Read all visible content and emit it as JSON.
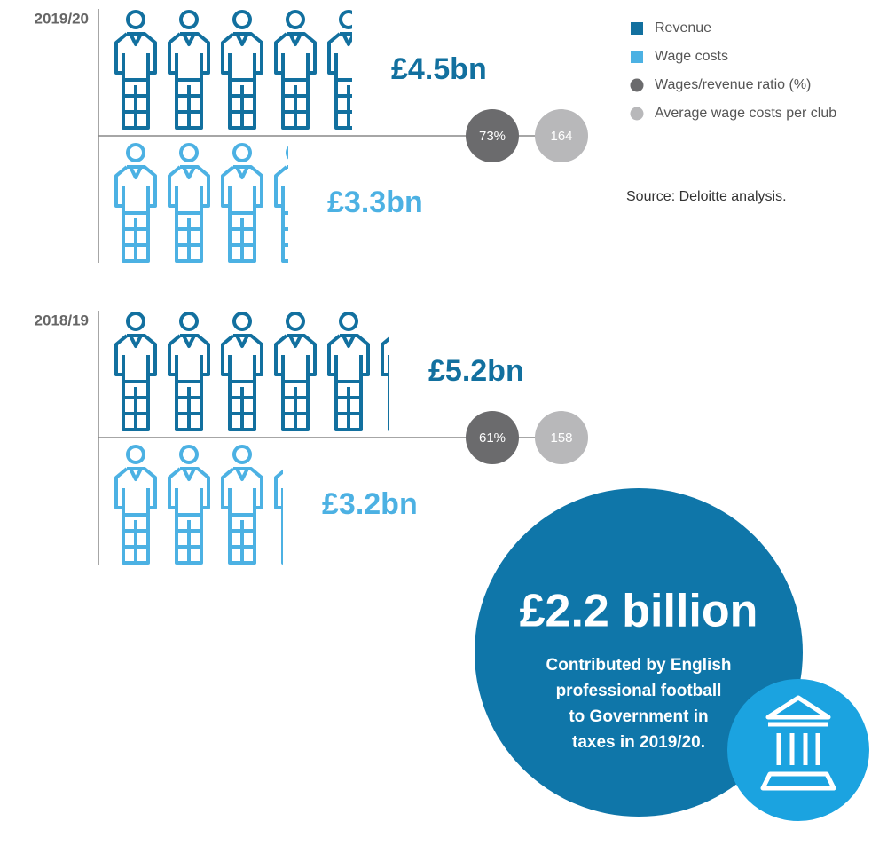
{
  "chart_data": {
    "type": "pictogram",
    "categories": [
      "2019/20",
      "2018/19"
    ],
    "series": [
      {
        "name": "Revenue",
        "color": "#12709f",
        "marker": "square",
        "values": [
          4.5,
          5.2
        ],
        "value_labels": [
          "£4.5bn",
          "£5.2bn"
        ]
      },
      {
        "name": "Wage costs",
        "color": "#4cb1e3",
        "marker": "square",
        "values": [
          3.3,
          3.2
        ],
        "value_labels": [
          "£3.3bn",
          "£3.2bn"
        ]
      },
      {
        "name": "Wages/revenue ratio (%)",
        "color": "#6b6b6d",
        "marker": "circle",
        "values": [
          73,
          61
        ],
        "value_labels": [
          "73%",
          "61%"
        ]
      },
      {
        "name": "Average wage costs per club",
        "color": "#b8b8ba",
        "marker": "circle",
        "values": [
          164,
          158
        ]
      }
    ],
    "source": "Source: Deloitte analysis."
  },
  "callout": {
    "value": "£2.2 billion",
    "lines": [
      "Contributed by English",
      "professional football",
      "to Government in",
      "taxes in 2019/20."
    ]
  }
}
